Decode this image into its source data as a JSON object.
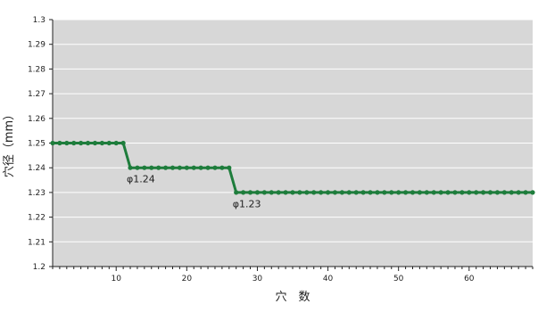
{
  "chart_data": {
    "type": "line",
    "title": "",
    "xlabel": "穴　数",
    "ylabel": "穴径（mm）",
    "xlim": [
      1,
      69
    ],
    "ylim": [
      1.2,
      1.3
    ],
    "y_ticks": [
      1.2,
      1.21,
      1.22,
      1.23,
      1.24,
      1.25,
      1.26,
      1.27,
      1.28,
      1.29,
      1.3
    ],
    "y_tick_labels": [
      "1.2",
      "1.21",
      "1.22",
      "1.23",
      "1.24",
      "1.25",
      "1.26",
      "1.27",
      "1.28",
      "1.29",
      "1.3"
    ],
    "x_ticks": [
      10,
      20,
      30,
      40,
      50,
      60
    ],
    "x_tick_labels": [
      "10",
      "20",
      "30",
      "40",
      "50",
      "60"
    ],
    "grid": true,
    "plot_background": "#d7d7d7",
    "series_color": "#1e7d3c",
    "series": [
      {
        "x": [
          1,
          2,
          3,
          4,
          5,
          6,
          7,
          8,
          9,
          10,
          11,
          12,
          13,
          14,
          15,
          16,
          17,
          18,
          19,
          20,
          21,
          22,
          23,
          24,
          25,
          26,
          27,
          28,
          29,
          30,
          31,
          32,
          33,
          34,
          35,
          36,
          37,
          38,
          39,
          40,
          41,
          42,
          43,
          44,
          45,
          46,
          47,
          48,
          49,
          50,
          51,
          52,
          53,
          54,
          55,
          56,
          57,
          58,
          59,
          60,
          61,
          62,
          63,
          64,
          65,
          66,
          67,
          68,
          69
        ],
        "values": [
          1.25,
          1.25,
          1.25,
          1.25,
          1.25,
          1.25,
          1.25,
          1.25,
          1.25,
          1.25,
          1.25,
          1.24,
          1.24,
          1.24,
          1.24,
          1.24,
          1.24,
          1.24,
          1.24,
          1.24,
          1.24,
          1.24,
          1.24,
          1.24,
          1.24,
          1.24,
          1.23,
          1.23,
          1.23,
          1.23,
          1.23,
          1.23,
          1.23,
          1.23,
          1.23,
          1.23,
          1.23,
          1.23,
          1.23,
          1.23,
          1.23,
          1.23,
          1.23,
          1.23,
          1.23,
          1.23,
          1.23,
          1.23,
          1.23,
          1.23,
          1.23,
          1.23,
          1.23,
          1.23,
          1.23,
          1.23,
          1.23,
          1.23,
          1.23,
          1.23,
          1.23,
          1.23,
          1.23,
          1.23,
          1.23,
          1.23,
          1.23,
          1.23,
          1.23
        ]
      }
    ],
    "annotations": [
      {
        "text": "φ1.24",
        "x": 13.5,
        "y": 1.2355
      },
      {
        "text": "φ1.23",
        "x": 28.5,
        "y": 1.2255
      }
    ]
  }
}
